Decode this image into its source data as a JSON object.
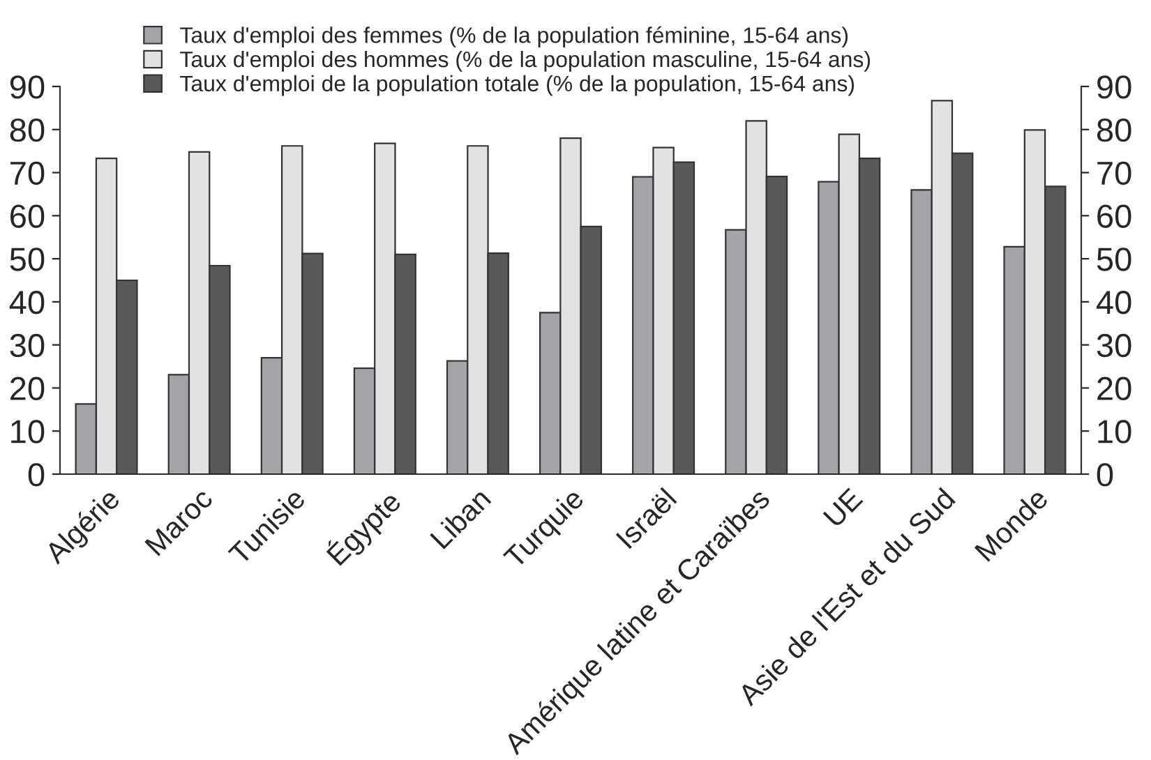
{
  "chart_data": {
    "type": "bar",
    "categories": [
      "Algérie",
      "Maroc",
      "Tunisie",
      "Égypte",
      "Liban",
      "Turquie",
      "Israël",
      "Amérique latine et Caraïbes",
      "UE",
      "Asie de l'Est et du Sud",
      "Monde"
    ],
    "series": [
      {
        "name": "Taux d'emploi des femmes (% de la population féminine, 15-64 ans)",
        "color": "#a3a4a8",
        "values": [
          16.3,
          23.1,
          27.0,
          24.6,
          26.3,
          37.5,
          69.0,
          56.7,
          67.9,
          66.0,
          52.8
        ]
      },
      {
        "name": "Taux d'emploi des hommes (% de la population masculine, 15-64 ans)",
        "color": "#e1e2e4",
        "values": [
          73.3,
          74.8,
          76.2,
          76.8,
          76.2,
          78.0,
          75.8,
          82.0,
          78.9,
          86.7,
          79.9
        ]
      },
      {
        "name": "Taux d'emploi de la population totale (% de la population, 15-64 ans)",
        "color": "#58595b",
        "values": [
          45.0,
          48.4,
          51.2,
          51.0,
          51.3,
          57.5,
          72.4,
          69.1,
          73.3,
          74.5,
          66.8
        ]
      }
    ],
    "ylim": [
      0,
      90
    ],
    "yticks": [
      0,
      10,
      20,
      30,
      40,
      50,
      60,
      70,
      80,
      90
    ],
    "y2lim": [
      0,
      90
    ],
    "y2ticks": [
      0,
      10,
      20,
      30,
      40,
      50,
      60,
      70,
      80,
      90
    ],
    "grid": false,
    "legend": "top"
  }
}
